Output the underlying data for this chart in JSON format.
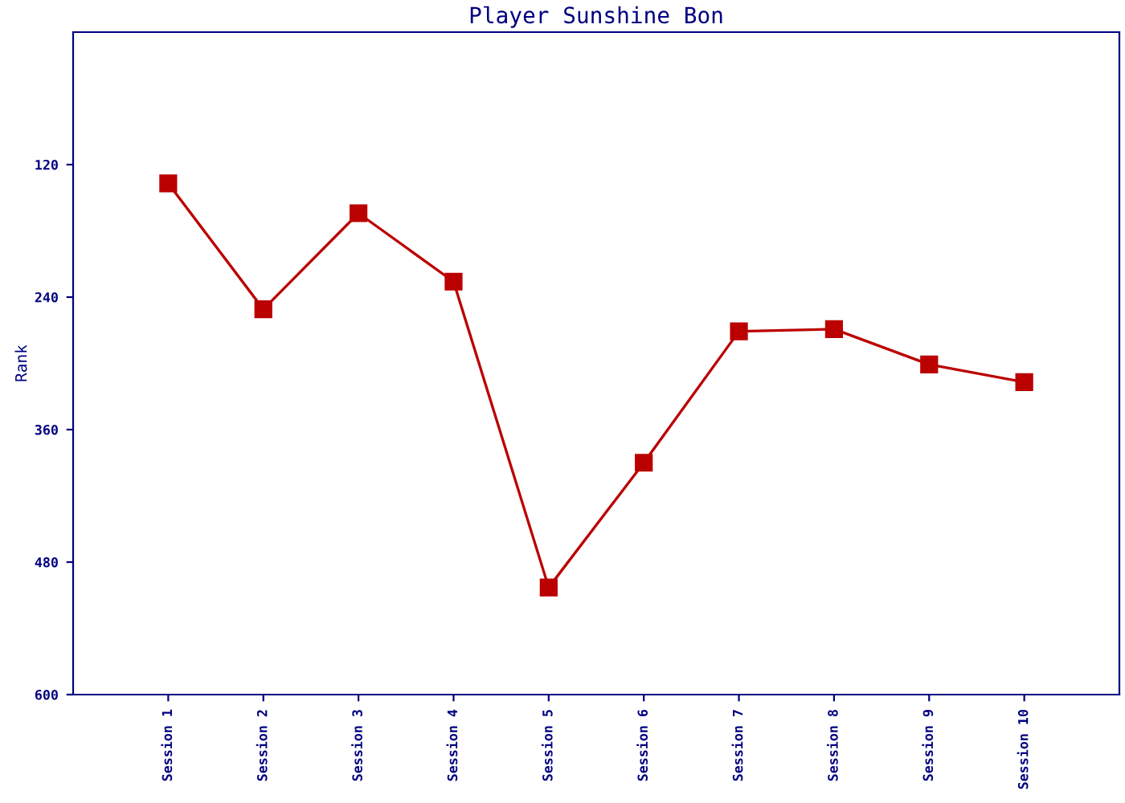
{
  "chart_data": {
    "type": "line",
    "title": "Player Sunshine Bon",
    "ylabel": "Rank",
    "categories": [
      "Session 1",
      "Session 2",
      "Session 3",
      "Session 4",
      "Session 5",
      "Session 6",
      "Session 7",
      "Session 8",
      "Session 9",
      "Session 10"
    ],
    "series": [
      {
        "color": "#bb0000",
        "values": [
          137,
          251,
          164,
          226,
          503,
          390,
          271,
          269,
          301,
          317
        ]
      }
    ],
    "ylim": [
      600,
      0
    ],
    "yticks": [
      120,
      240,
      360,
      480,
      600
    ],
    "marker": "square",
    "line_style": "solid",
    "grid": false,
    "legend": false
  }
}
